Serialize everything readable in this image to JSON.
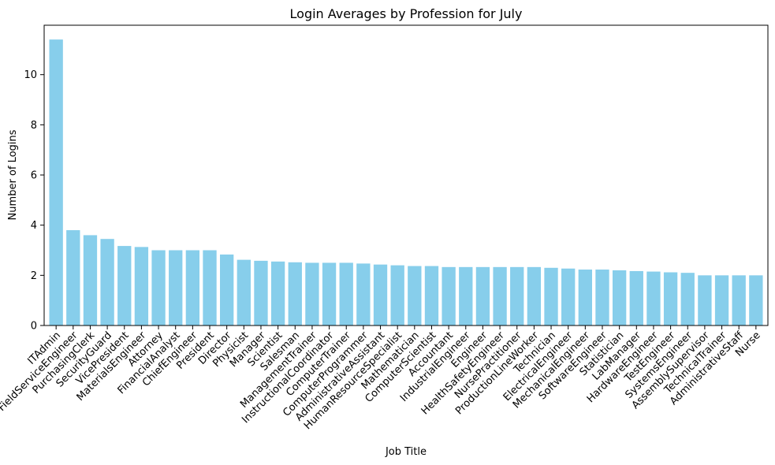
{
  "chart_data": {
    "type": "bar",
    "title": "Login Averages by Profession for July",
    "xlabel": "Job Title",
    "ylabel": "Number of Logins",
    "ylim": [
      0,
      11.97
    ],
    "yticks": [
      0,
      2,
      4,
      6,
      8,
      10
    ],
    "bar_color": "#87CEEB",
    "categories": [
      "ITAdmin",
      "FieldServiceEngineer",
      "PurchasingClerk",
      "SecurityGuard",
      "VicePresident",
      "MaterialsEngineer",
      "Attorney",
      "FinancialAnalyst",
      "ChiefEngineer",
      "President",
      "Director",
      "Physicist",
      "Manager",
      "Scientist",
      "Salesman",
      "ManagementTrainer",
      "InstructionalCoordinator",
      "ComputerTrainer",
      "ComputerProgrammer",
      "AdministrativeAssistant",
      "HumanResourceSpecialist",
      "Mathematician",
      "ComputerScientist",
      "Accountant",
      "IndustrialEngineer",
      "Engineer",
      "HealthSafetyEngineer",
      "NursePractitioner",
      "ProductionLineWorker",
      "Technician",
      "ElectricalEngineer",
      "MechanicalEngineer",
      "SoftwareEngineer",
      "Statistician",
      "LabManager",
      "HardwareEngineer",
      "TestEngineer",
      "SystemsEngineer",
      "AssemblySupervisor",
      "TechnicalTrainer",
      "AdministrativeStaff",
      "Nurse"
    ],
    "values": [
      11.4,
      3.8,
      3.6,
      3.45,
      3.17,
      3.13,
      3.0,
      3.0,
      3.0,
      3.0,
      2.83,
      2.62,
      2.58,
      2.55,
      2.52,
      2.5,
      2.5,
      2.5,
      2.47,
      2.43,
      2.4,
      2.37,
      2.37,
      2.33,
      2.33,
      2.33,
      2.33,
      2.33,
      2.33,
      2.3,
      2.27,
      2.23,
      2.23,
      2.2,
      2.17,
      2.15,
      2.12,
      2.1,
      2.0,
      2.0,
      2.0,
      2.0
    ]
  }
}
